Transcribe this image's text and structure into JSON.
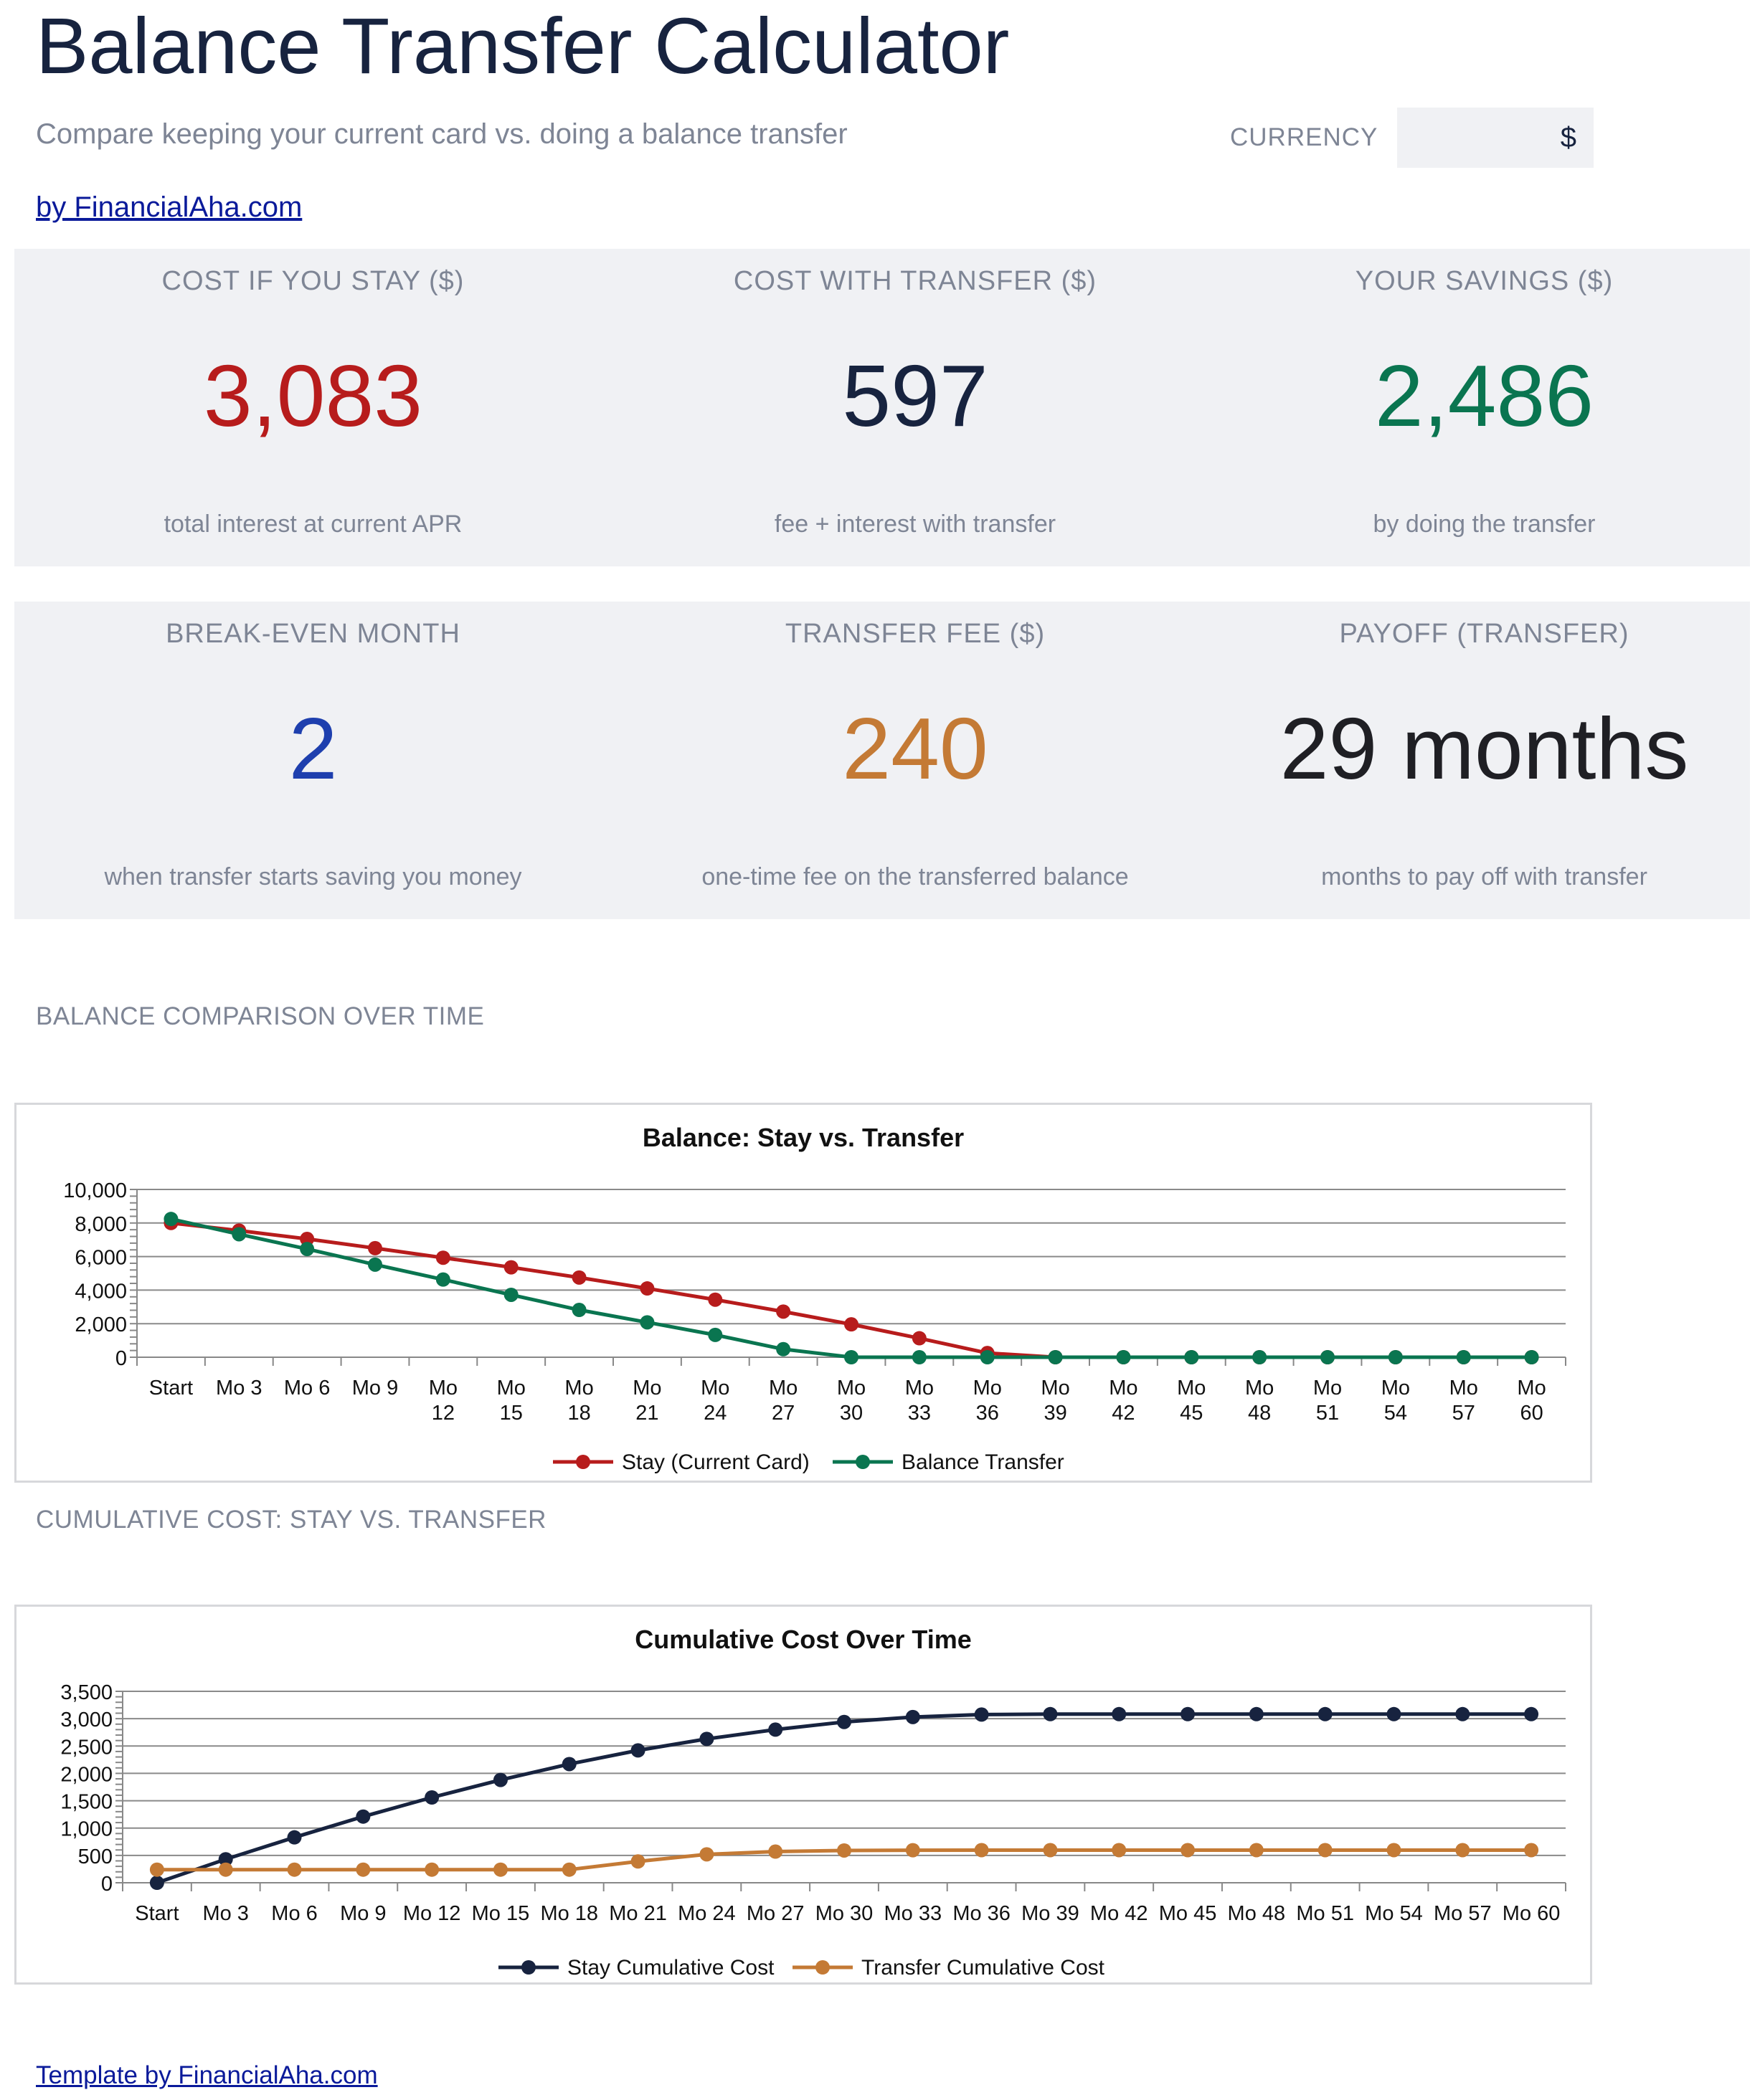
{
  "header": {
    "title": "Balance Transfer Calculator",
    "subtitle": "Compare keeping your current card vs. doing a balance transfer",
    "currency_label": "CURRENCY",
    "currency_value": "$",
    "byline": "by FinancialAha.com"
  },
  "cards_row1": [
    {
      "label": "COST IF YOU STAY ($)",
      "value": "3,083",
      "sub": "total interest at current APR",
      "color": "#b71c1c"
    },
    {
      "label": "COST WITH TRANSFER ($)",
      "value": "597",
      "sub": "fee + interest with transfer",
      "color": "#17233f"
    },
    {
      "label": "YOUR SAVINGS ($)",
      "value": "2,486",
      "sub": "by doing the transfer",
      "color": "#0a7550"
    }
  ],
  "cards_row2": [
    {
      "label": "BREAK-EVEN MONTH",
      "value": "2",
      "sub": "when transfer starts saving you money",
      "color": "#1e3fae"
    },
    {
      "label": "TRANSFER FEE ($)",
      "value": "240",
      "sub": "one-time fee on the transferred balance",
      "color": "#c47a35"
    },
    {
      "label": "PAYOFF (TRANSFER)",
      "value": "29 months",
      "sub": "months to pay off with transfer",
      "color": "#1f1f24"
    }
  ],
  "section1_label": "BALANCE COMPARISON OVER TIME",
  "section2_label": "CUMULATIVE COST: STAY VS. TRANSFER",
  "footer_link": "Template by FinancialAha.com",
  "chart_data": [
    {
      "type": "line",
      "title": "Balance: Stay vs. Transfer",
      "categories": [
        "Start",
        "Mo 3",
        "Mo 6",
        "Mo 9",
        "Mo 12",
        "Mo 15",
        "Mo 18",
        "Mo 21",
        "Mo 24",
        "Mo 27",
        "Mo 30",
        "Mo 33",
        "Mo 36",
        "Mo 39",
        "Mo 42",
        "Mo 45",
        "Mo 48",
        "Mo 51",
        "Mo 54",
        "Mo 57",
        "Mo 60"
      ],
      "ylim": [
        0,
        10000
      ],
      "yticks": [
        0,
        2000,
        4000,
        6000,
        8000,
        10000
      ],
      "ytick_labels": [
        "0",
        "2,000",
        "4,000",
        "6,000",
        "8,000",
        "10,000"
      ],
      "grid": true,
      "legend": "bottom",
      "series": [
        {
          "name": "Stay (Current Card)",
          "color": "#b71c1c",
          "values": [
            8000,
            7550,
            7050,
            6500,
            5930,
            5360,
            4750,
            4100,
            3430,
            2720,
            1960,
            1130,
            250,
            0,
            0,
            0,
            0,
            0,
            0,
            0,
            0
          ]
        },
        {
          "name": "Balance Transfer",
          "color": "#0a7550",
          "values": [
            8240,
            7330,
            6450,
            5520,
            4630,
            3720,
            2820,
            2080,
            1330,
            480,
            0,
            0,
            0,
            0,
            0,
            0,
            0,
            0,
            0,
            0,
            0
          ]
        }
      ]
    },
    {
      "type": "line",
      "title": "Cumulative Cost Over Time",
      "categories": [
        "Start",
        "Mo 3",
        "Mo 6",
        "Mo 9",
        "Mo 12",
        "Mo 15",
        "Mo 18",
        "Mo 21",
        "Mo 24",
        "Mo 27",
        "Mo 30",
        "Mo 33",
        "Mo 36",
        "Mo 39",
        "Mo 42",
        "Mo 45",
        "Mo 48",
        "Mo 51",
        "Mo 54",
        "Mo 57",
        "Mo 60"
      ],
      "ylim": [
        0,
        3500
      ],
      "yticks": [
        0,
        500,
        1000,
        1500,
        2000,
        2500,
        3000,
        3500
      ],
      "ytick_labels": [
        "0",
        "500",
        "1,000",
        "1,500",
        "2,000",
        "2,500",
        "3,000",
        "3,500"
      ],
      "grid": true,
      "legend": "bottom",
      "series": [
        {
          "name": "Stay Cumulative Cost",
          "color": "#17233f",
          "values": [
            0,
            430,
            830,
            1210,
            1560,
            1880,
            2170,
            2420,
            2630,
            2800,
            2940,
            3030,
            3075,
            3083,
            3083,
            3083,
            3083,
            3083,
            3083,
            3083,
            3083
          ]
        },
        {
          "name": "Transfer Cumulative Cost",
          "color": "#c47a35",
          "values": [
            240,
            240,
            240,
            240,
            240,
            240,
            240,
            390,
            520,
            570,
            590,
            595,
            597,
            597,
            597,
            597,
            597,
            597,
            597,
            597,
            597
          ]
        }
      ]
    }
  ]
}
